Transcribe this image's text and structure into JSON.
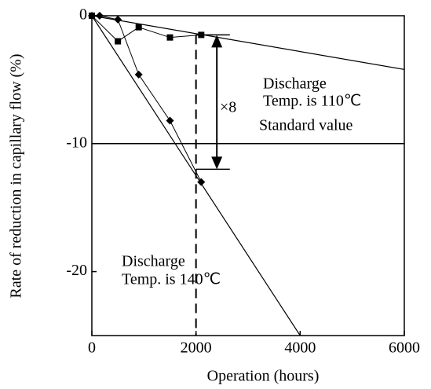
{
  "chart_data": {
    "type": "line",
    "x_label": "Operation (hours)",
    "y_label": "Rate of reduction in capillary flow (%)",
    "xlim": [
      0,
      6000
    ],
    "ylim": [
      -25,
      0
    ],
    "xticks": [
      0,
      2000,
      4000,
      6000
    ],
    "yticks": [
      0,
      -10,
      -20
    ],
    "series": [
      {
        "marker": "square",
        "color": "#000000",
        "x": [
          0,
          500,
          900,
          1500,
          2100
        ],
        "values": [
          0,
          -2.0,
          -0.9,
          -1.7,
          -1.5
        ]
      },
      {
        "marker": "diamond",
        "color": "#000000",
        "x": [
          0,
          150,
          500,
          900,
          1500,
          2100
        ],
        "values": [
          0,
          0,
          -0.3,
          -4.6,
          -8.2,
          -13
        ]
      }
    ],
    "trend_lines": [
      {
        "x": [
          0,
          6000
        ],
        "values": [
          0,
          -4.2
        ]
      },
      {
        "x": [
          0,
          4000
        ],
        "values": [
          0,
          -25
        ]
      }
    ],
    "standard_value": -10,
    "dashed_x": 2000,
    "arrow": {
      "x": 2400,
      "from": -1.5,
      "to": -12
    },
    "annotations": [
      {
        "lines": [
          "Discharge",
          "Temp. is 110℃"
        ]
      },
      {
        "lines": [
          "×8"
        ]
      },
      {
        "lines": [
          "Standard value"
        ]
      },
      {
        "lines": [
          "Discharge",
          "Temp. is 140℃"
        ]
      }
    ]
  }
}
